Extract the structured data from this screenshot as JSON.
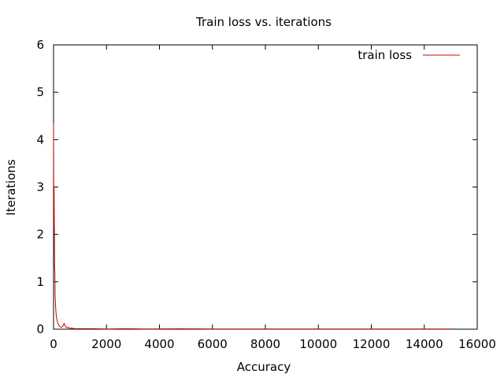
{
  "chart_data": {
    "type": "line",
    "title": "Train loss vs. iterations",
    "xlabel": "Accuracy",
    "ylabel": "Iterations",
    "xlim": [
      0,
      16000
    ],
    "ylim": [
      0,
      6
    ],
    "xticks": [
      0,
      2000,
      4000,
      6000,
      8000,
      10000,
      12000,
      14000,
      16000
    ],
    "yticks": [
      0,
      1,
      2,
      3,
      4,
      5,
      6
    ],
    "grid": false,
    "legend": "top-right",
    "series": [
      {
        "name": "train loss",
        "color": "#cc0000",
        "x": [
          0,
          10,
          20,
          30,
          40,
          50,
          60,
          80,
          100,
          120,
          150,
          180,
          200,
          250,
          300,
          350,
          400,
          450,
          500,
          550,
          600,
          700,
          800,
          1000,
          1500,
          2000,
          2700,
          3500,
          4700,
          6000,
          8000,
          10000,
          12000,
          14000,
          15000
        ],
        "y": [
          4.35,
          2.1,
          3.0,
          2.2,
          1.3,
          1.2,
          0.7,
          0.45,
          0.3,
          0.22,
          0.15,
          0.1,
          0.08,
          0.05,
          0.04,
          0.06,
          0.12,
          0.06,
          0.03,
          0.04,
          0.02,
          0.02,
          0.01,
          0.01,
          0.01,
          0.005,
          0.01,
          0.005,
          0.008,
          0.005,
          0.005,
          0.005,
          0.005,
          0.005,
          0.005
        ]
      }
    ]
  }
}
